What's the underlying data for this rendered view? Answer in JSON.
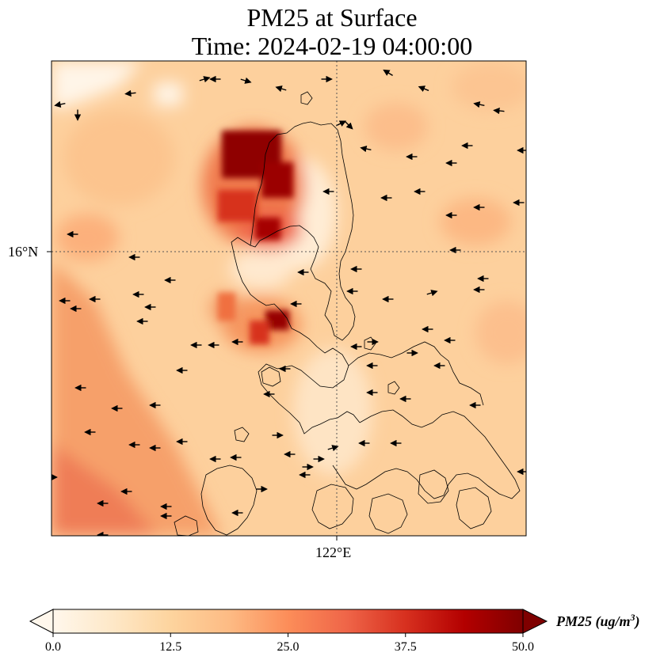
{
  "title": {
    "line1": "PM25 at Surface",
    "line2": "Time: 2024-02-19 04:00:00"
  },
  "axes": {
    "lat_label": "16°N",
    "lon_label": "122°E"
  },
  "colorbar": {
    "label_main": "PM25 (ug/m",
    "label_sup": "3",
    "label_close": ")",
    "min": 0.0,
    "max": 50.0,
    "ticks": [
      "0.0",
      "12.5",
      "25.0",
      "37.5",
      "50.0"
    ],
    "extend": "both",
    "colormap": "OrRd",
    "colors": [
      "#fff7ec",
      "#fee8c8",
      "#fdd49e",
      "#fdbb84",
      "#fc8d59",
      "#ef6548",
      "#d7301f",
      "#b30000",
      "#7f0000"
    ]
  },
  "map": {
    "background_color": "#fdd09d",
    "gridline_style": "dotted",
    "coastline_color": "#000000"
  }
}
